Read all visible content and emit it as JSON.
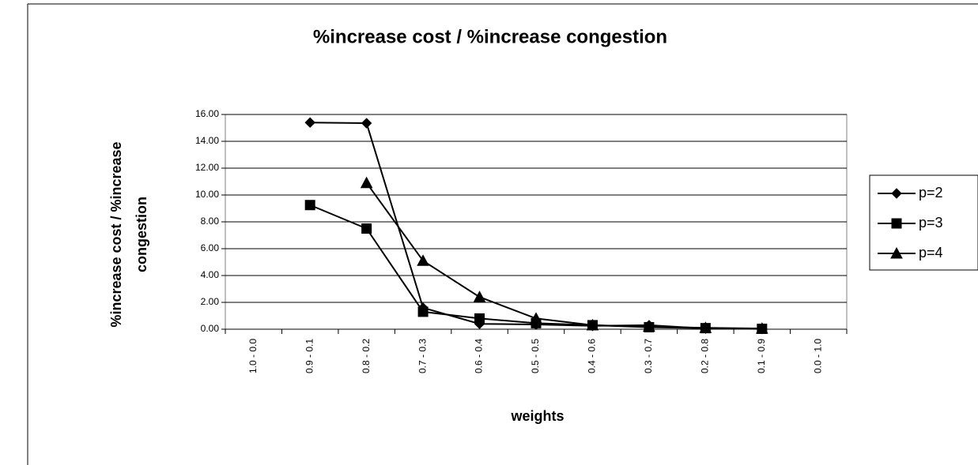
{
  "chart_data": {
    "type": "line",
    "title": "%increase cost  /  %increase congestion",
    "ylabel": [
      "%increase cost  /  %increase",
      "congestion"
    ],
    "xlabel": "weights",
    "categories": [
      "1.0 - 0.0",
      "0.9 - 0.1",
      "0.8 - 0.2",
      "0.7 - 0.3",
      "0.6 - 0.4",
      "0.5 - 0.5",
      "0.4 - 0.6",
      "0.3 - 0.7",
      "0.2 - 0.8",
      "0.1 - 0.9",
      "0.0 - 1.0"
    ],
    "series": [
      {
        "name": "p=2",
        "color": "#000000",
        "marker": "diamond",
        "values": [
          null,
          15.4,
          15.35,
          1.6,
          0.4,
          0.35,
          0.25,
          0.3,
          0.05,
          0.02,
          null
        ]
      },
      {
        "name": "p=3",
        "color": "#000000",
        "marker": "square",
        "values": [
          null,
          9.25,
          7.5,
          1.3,
          0.8,
          0.45,
          0.3,
          0.15,
          0.08,
          0.03,
          null
        ]
      },
      {
        "name": "p=4",
        "color": "#000000",
        "marker": "triangle",
        "values": [
          null,
          null,
          10.9,
          5.1,
          2.4,
          0.8,
          0.3,
          0.2,
          0.1,
          0.05,
          null
        ]
      }
    ],
    "ylim": [
      0,
      16
    ],
    "yticks": [
      {
        "value": 0,
        "label": "0.00"
      },
      {
        "value": 2,
        "label": "2.00"
      },
      {
        "value": 4,
        "label": "4.00"
      },
      {
        "value": 6,
        "label": "6.00"
      },
      {
        "value": 8,
        "label": "8.00"
      },
      {
        "value": 10,
        "label": "10.00"
      },
      {
        "value": 12,
        "label": "12.00"
      },
      {
        "value": 14,
        "label": "14.00"
      },
      {
        "value": 16,
        "label": "16.00"
      }
    ],
    "grid": true,
    "legend": "right"
  }
}
